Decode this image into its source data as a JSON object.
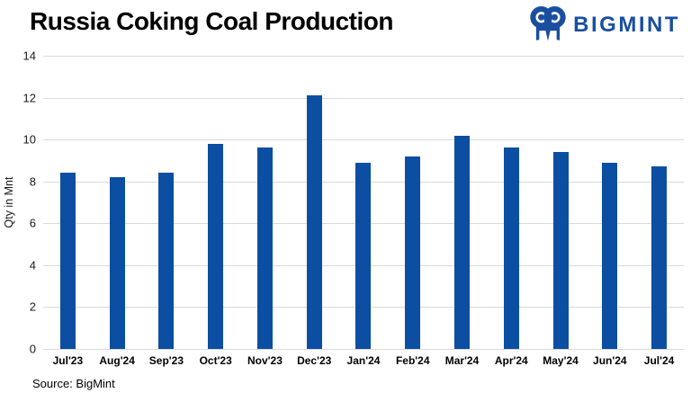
{
  "header": {
    "title": "Russia Coking Coal Production",
    "logo": {
      "text": "BIGMINT",
      "color": "#1A4FA0",
      "icon": "owl-icon"
    }
  },
  "chart_data": {
    "type": "bar",
    "title": "Russia Coking Coal Production",
    "categories": [
      "Jul'23",
      "Aug'24",
      "Sep'23",
      "Oct'23",
      "Nov'23",
      "Dec'23",
      "Jan'24",
      "Feb'24",
      "Mar'24",
      "Apr'24",
      "May'24",
      "Jun'24",
      "Jul'24"
    ],
    "values": [
      8.4,
      8.2,
      8.4,
      9.8,
      9.6,
      12.1,
      8.9,
      9.2,
      10.2,
      9.6,
      9.4,
      8.9,
      8.7
    ],
    "xlabel": "",
    "ylabel": "Qty in Mnt",
    "ylim": [
      0,
      14
    ],
    "yticks": [
      0,
      2,
      4,
      6,
      8,
      10,
      12,
      14
    ],
    "bar_color": "#0B4EA2",
    "gridline_color": "#D9D9D9",
    "grid": true,
    "legend": false
  },
  "footer": {
    "source": "Source: BigMint"
  }
}
